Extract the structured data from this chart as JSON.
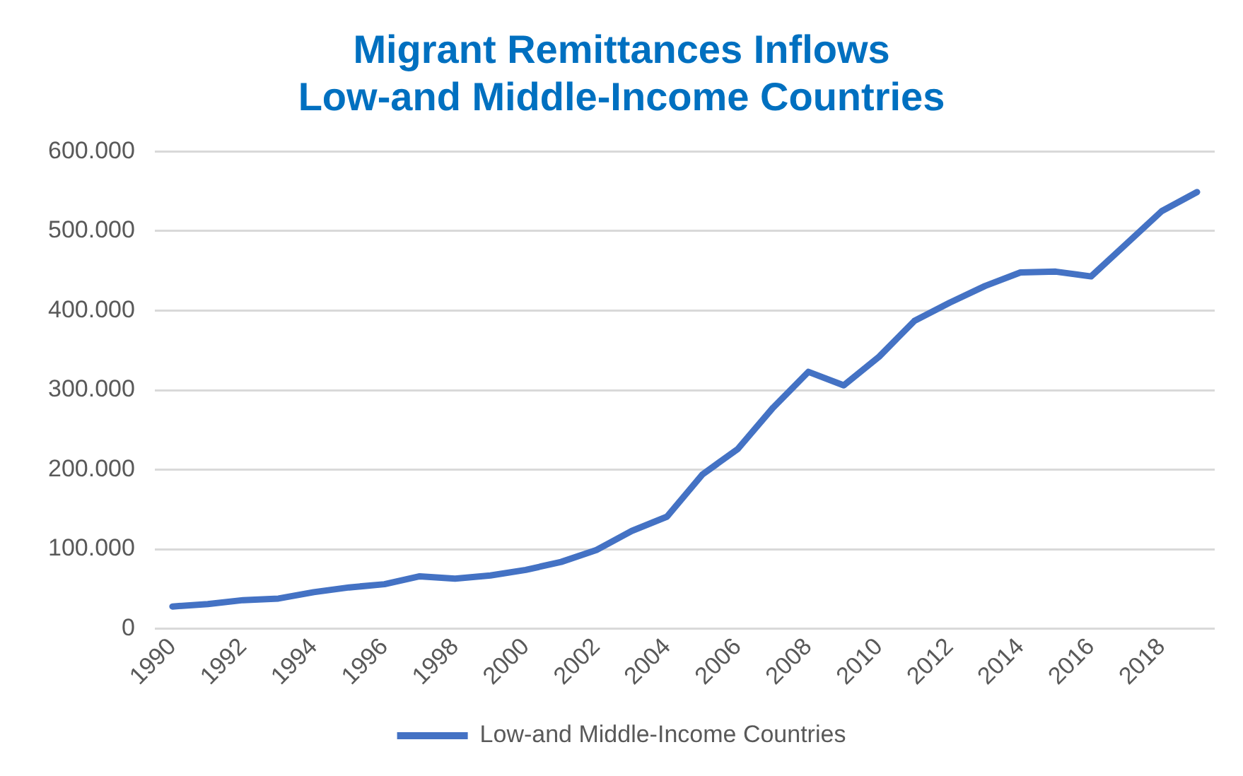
{
  "chart_data": {
    "type": "line",
    "title": [
      "Migrant Remittances Inflows",
      "Low-and Middle-Income Countries"
    ],
    "categories": [
      "1990",
      null,
      "1992",
      null,
      "1994",
      null,
      "1996",
      null,
      "1998",
      null,
      "2000",
      null,
      "2002",
      null,
      "2004",
      null,
      "2006",
      null,
      "2008",
      null,
      "2010",
      null,
      "2012",
      null,
      "2014",
      null,
      "2016",
      null,
      "2018",
      null
    ],
    "series": [
      {
        "name": "Low-and Middle-Income Countries",
        "color": "#4472c4",
        "values": [
          28000,
          31000,
          36000,
          38000,
          46000,
          52000,
          56000,
          66000,
          63000,
          67000,
          74000,
          84000,
          99000,
          123000,
          141000,
          194000,
          226000,
          278000,
          323000,
          306000,
          342000,
          387000,
          410000,
          431000,
          448000,
          449000,
          443000,
          484000,
          525000,
          549000
        ]
      }
    ],
    "ylim": [
      0,
      600000
    ],
    "yticks": [
      0,
      {
        "value": 100000,
        "label": "100.000"
      },
      {
        "value": 200000,
        "label": "200.000"
      },
      {
        "value": 300000,
        "label": "300.000"
      },
      {
        "value": 400000,
        "label": "400.000"
      },
      {
        "value": 500000,
        "label": "500.000"
      },
      {
        "value": 600000,
        "label": "600.000"
      }
    ],
    "grid": "y",
    "legend": "bottom",
    "marker": "none",
    "line_style": "solid"
  }
}
